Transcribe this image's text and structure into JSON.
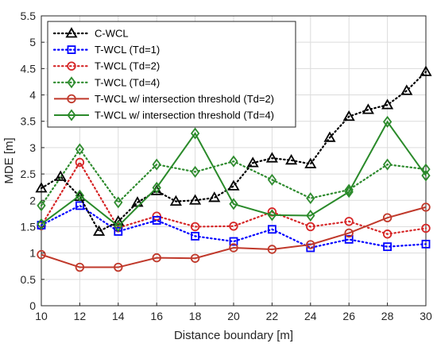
{
  "chart_data": {
    "type": "line",
    "xlabel": "Distance boundary [m]",
    "ylabel": "MDE [m]",
    "xlim": [
      10,
      30
    ],
    "ylim": [
      0,
      5.5
    ],
    "xticks": [
      10,
      12,
      14,
      16,
      18,
      20,
      22,
      24,
      26,
      28,
      30
    ],
    "yticks": [
      0,
      0.5,
      1,
      1.5,
      2,
      2.5,
      3,
      3.5,
      4,
      4.5,
      5,
      5.5
    ],
    "grid": true,
    "legend_position": "top-left",
    "series": [
      {
        "name": "C-WCL",
        "color": "#000000",
        "dash": "dotted",
        "marker": "triangle",
        "x": [
          10,
          11,
          12,
          13,
          14,
          15,
          16,
          17,
          18,
          19,
          20,
          21,
          22,
          23,
          24,
          25,
          26,
          27,
          28,
          29,
          30
        ],
        "y": [
          2.23,
          2.45,
          2.07,
          1.41,
          1.6,
          1.96,
          2.18,
          1.98,
          2.0,
          2.05,
          2.27,
          2.71,
          2.8,
          2.76,
          2.69,
          3.19,
          3.59,
          3.72,
          3.81,
          4.08,
          4.44
        ]
      },
      {
        "name": "T-WCL (Td=1)",
        "color": "#0000ff",
        "dash": "dotted",
        "marker": "square",
        "x": [
          10,
          12,
          14,
          16,
          18,
          20,
          22,
          24,
          26,
          28,
          30
        ],
        "y": [
          1.53,
          1.9,
          1.41,
          1.62,
          1.32,
          1.22,
          1.45,
          1.1,
          1.26,
          1.12,
          1.17
        ]
      },
      {
        "name": "T-WCL (Td=2)",
        "color": "#d62728",
        "dash": "dotted",
        "marker": "circle",
        "x": [
          10,
          12,
          14,
          16,
          18,
          20,
          22,
          24,
          26,
          28,
          30
        ],
        "y": [
          1.52,
          2.72,
          1.48,
          1.7,
          1.5,
          1.51,
          1.78,
          1.5,
          1.6,
          1.36,
          1.47
        ]
      },
      {
        "name": "T-WCL (Td=4)",
        "color": "#2e8b2e",
        "dash": "dotted",
        "marker": "diamond",
        "x": [
          10,
          12,
          14,
          16,
          18,
          20,
          22,
          24,
          26,
          28,
          30
        ],
        "y": [
          1.9,
          2.97,
          1.96,
          2.68,
          2.54,
          2.74,
          2.39,
          2.04,
          2.2,
          2.68,
          2.59
        ]
      },
      {
        "name": "T-WCL w/ intersection threshold (Td=2)",
        "color": "#c0392b",
        "dash": "solid",
        "marker": "circle",
        "x": [
          10,
          12,
          14,
          16,
          18,
          20,
          22,
          24,
          26,
          28,
          30
        ],
        "y": [
          0.97,
          0.73,
          0.73,
          0.91,
          0.9,
          1.1,
          1.07,
          1.16,
          1.38,
          1.67,
          1.87
        ]
      },
      {
        "name": "T-WCL w/ intersection threshold (Td=4)",
        "color": "#2a8a2a",
        "dash": "solid",
        "marker": "diamond",
        "x": [
          10,
          12,
          14,
          16,
          18,
          20,
          22,
          24,
          26,
          28,
          30
        ],
        "y": [
          1.55,
          2.09,
          1.51,
          2.24,
          3.27,
          1.93,
          1.72,
          1.71,
          2.16,
          3.49,
          2.47
        ]
      }
    ]
  }
}
